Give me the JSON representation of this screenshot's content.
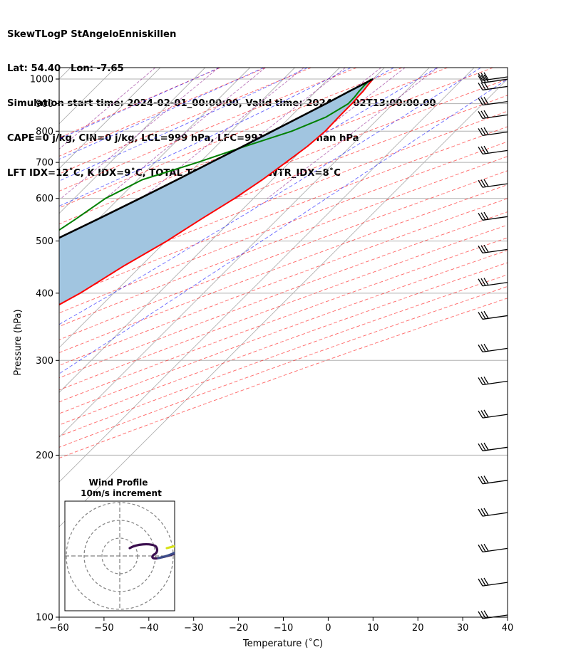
{
  "header": {
    "line1": "SkewTLogP StAngeloEnniskillen",
    "line2": "Lat: 54.40   Lon: -7.65",
    "line3": "Simulation start time: 2024-02-01_00:00:00, Valid time: 2024-02-02T13:00:00.00",
    "line4": "CAPE=0 j/kg, CIN=0 j/kg, LCL=999 hPa, LFC=991 hPa, EQ=nan hPa",
    "line5": "LFT IDX=12˚C, K IDX=9˚C, TOTAL TOTS=40˚C, SHWTR_IDX=8˚C"
  },
  "chart_data": {
    "type": "line",
    "title": "SkewTLogP StAngeloEnniskillen",
    "xlabel": "Temperature (˚C)",
    "ylabel": "Pressure (hPa)",
    "xlim": [
      -60,
      40
    ],
    "ylim": [
      1050,
      100
    ],
    "y_scale": "log",
    "grid": true,
    "x_ticks": [
      -60,
      -50,
      -40,
      -30,
      -20,
      -10,
      0,
      10,
      20,
      30,
      40
    ],
    "x_tick_labels": [
      "−60",
      "−50",
      "−40",
      "−30",
      "−20",
      "−10",
      "0",
      "10",
      "20",
      "30",
      "40"
    ],
    "y_ticks": [
      1000,
      900,
      800,
      700,
      600,
      500,
      400,
      300,
      200,
      100
    ],
    "y_tick_labels": [
      "1000",
      "900",
      "800",
      "700",
      "600",
      "500",
      "400",
      "300",
      "200",
      "100"
    ],
    "series": [
      {
        "kind": "temperature",
        "color": "#ff0000",
        "points": [
          [
            1000,
            10.0
          ],
          [
            975,
            10.2
          ],
          [
            950,
            10.5
          ],
          [
            925,
            10.6
          ],
          [
            900,
            10.8
          ],
          [
            850,
            10.8
          ],
          [
            800,
            11.0
          ],
          [
            750,
            10.4
          ],
          [
            700,
            9.2
          ],
          [
            650,
            7.8
          ],
          [
            600,
            5.8
          ],
          [
            550,
            3.0
          ],
          [
            500,
            0.2
          ],
          [
            450,
            -3.8
          ],
          [
            400,
            -7.5
          ],
          [
            350,
            -13.2
          ],
          [
            300,
            -19.5
          ],
          [
            270,
            -23.0
          ],
          [
            250,
            -27.2
          ],
          [
            230,
            -32.0
          ],
          [
            210,
            -36.2
          ],
          [
            195,
            -39.5
          ],
          [
            180,
            -42.0
          ],
          [
            170,
            -43.0
          ],
          [
            160,
            -45.5
          ],
          [
            150,
            -48.5
          ],
          [
            140,
            -51.2
          ],
          [
            130,
            -55.0
          ],
          [
            120,
            -58.5
          ],
          [
            110,
            -62.2
          ],
          [
            100,
            -64.5
          ]
        ]
      },
      {
        "kind": "dewpoint",
        "color": "#008000",
        "points": [
          [
            1000,
            9.6
          ],
          [
            975,
            9.5
          ],
          [
            950,
            9.6
          ],
          [
            925,
            9.9
          ],
          [
            900,
            10.0
          ],
          [
            850,
            8.0
          ],
          [
            800,
            3.5
          ],
          [
            750,
            -3.5
          ],
          [
            700,
            -10.5
          ],
          [
            650,
            -19.0
          ],
          [
            600,
            -23.0
          ],
          [
            550,
            -25.0
          ],
          [
            500,
            -27.5
          ],
          [
            450,
            -27.2
          ],
          [
            400,
            -25.0
          ],
          [
            350,
            -25.0
          ],
          [
            320,
            -22.5
          ],
          [
            300,
            -19.2
          ],
          [
            270,
            -18.0
          ],
          [
            250,
            -20.0
          ],
          [
            230,
            -22.5
          ],
          [
            210,
            -26.0
          ],
          [
            190,
            -33.5
          ],
          [
            170,
            -35.0
          ],
          [
            160,
            -33.0
          ],
          [
            150,
            -30.5
          ],
          [
            140,
            -30.5
          ],
          [
            130,
            -32.5
          ],
          [
            120,
            -34.5
          ],
          [
            110,
            -35.5
          ],
          [
            100,
            -38.0
          ]
        ]
      },
      {
        "kind": "parcel",
        "color": "#000000",
        "points": [
          [
            1000,
            10.0
          ],
          [
            950,
            7.5
          ],
          [
            900,
            5.0
          ],
          [
            850,
            2.2
          ],
          [
            800,
            -0.8
          ],
          [
            750,
            -4.0
          ],
          [
            700,
            -7.5
          ],
          [
            650,
            -11.2
          ],
          [
            600,
            -15.3
          ],
          [
            550,
            -20.0
          ],
          [
            500,
            -25.3
          ],
          [
            450,
            -31.2
          ],
          [
            400,
            -38.0
          ],
          [
            350,
            -45.8
          ],
          [
            300,
            -54.5
          ],
          [
            250,
            -64.5
          ],
          [
            200,
            -76.0
          ],
          [
            150,
            -89.0
          ],
          [
            100,
            -104.0
          ]
        ]
      }
    ],
    "shading": {
      "fill": "#a1c5e0",
      "between": [
        "parcel",
        "temperature"
      ]
    },
    "wind_barb_pressures": [
      100,
      115,
      133,
      155,
      178,
      205,
      236,
      272,
      313,
      360,
      415,
      478,
      550,
      633,
      730,
      790,
      850,
      900,
      960,
      990,
      1000
    ],
    "hodograph": {
      "title_line1": "Wind Profile",
      "title_line2": "10m/s increment"
    }
  }
}
